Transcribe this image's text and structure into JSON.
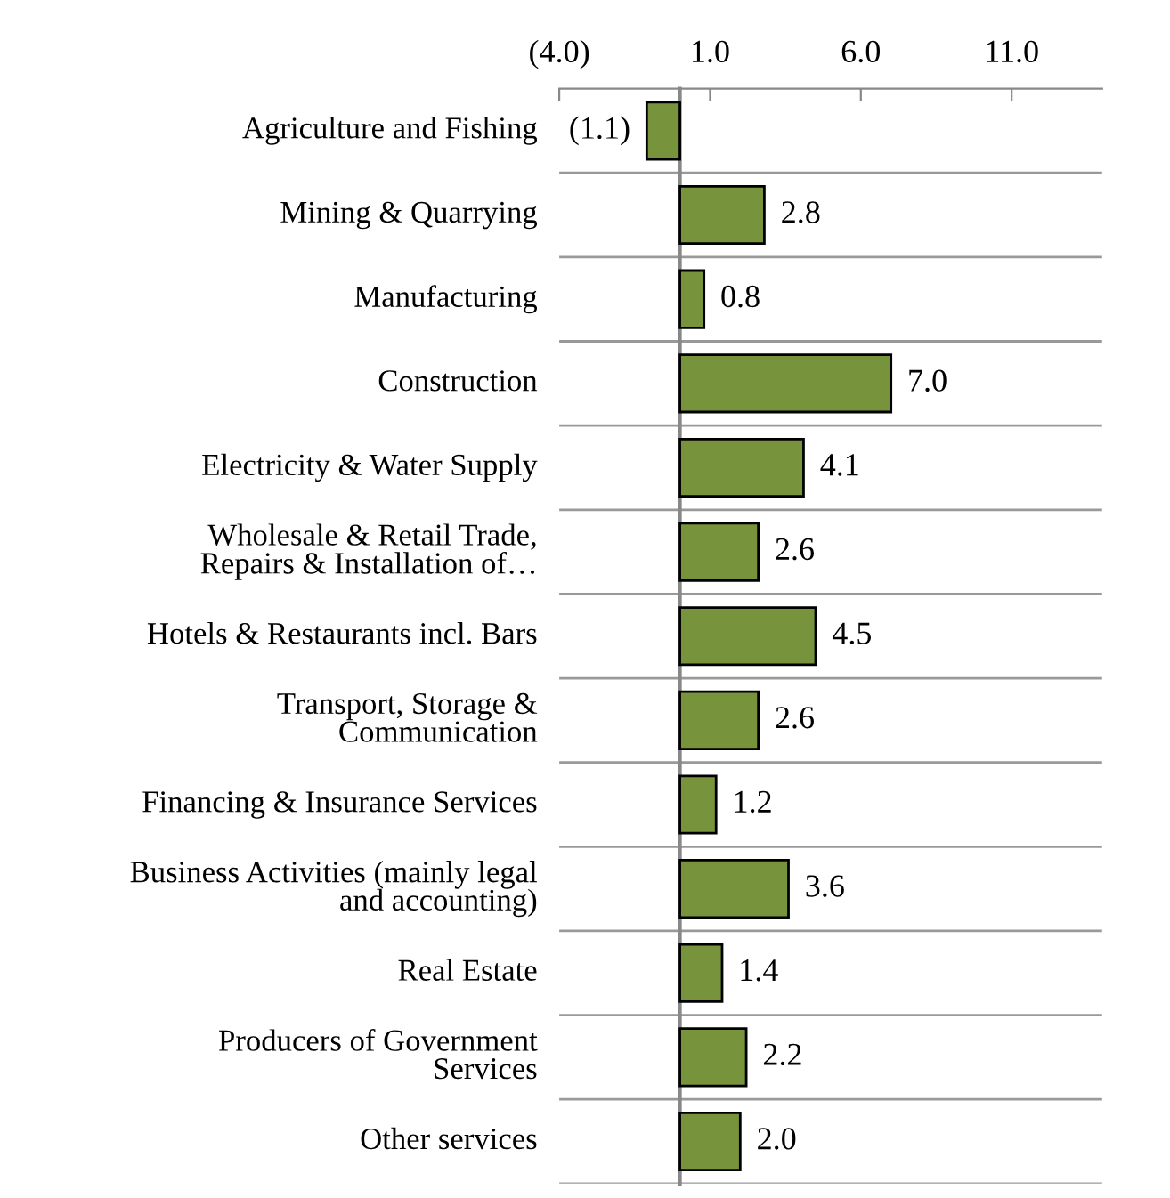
{
  "chart_data": {
    "type": "bar",
    "orientation": "horizontal",
    "categories": [
      "Agriculture and Fishing",
      "Mining & Quarrying",
      "Manufacturing",
      "Construction",
      "Electricity & Water Supply",
      "Wholesale & Retail Trade,\nRepairs & Installation of…",
      "Hotels & Restaurants incl. Bars",
      "Transport, Storage &\nCommunication",
      "Financing & Insurance Services",
      "Business Activities (mainly legal\nand accounting)",
      "Real Estate",
      "Producers of Government\nServices",
      "Other services"
    ],
    "values": [
      -1.1,
      2.8,
      0.8,
      7.0,
      4.1,
      2.6,
      4.5,
      2.6,
      1.2,
      3.6,
      1.4,
      2.2,
      2.0
    ],
    "value_labels": [
      "(1.1)",
      "2.8",
      "0.8",
      "7.0",
      "4.1",
      "2.6",
      "4.5",
      "2.6",
      "1.2",
      "3.6",
      "1.4",
      "2.2",
      "2.0"
    ],
    "color": "#77933c",
    "xlim": [
      -4,
      14
    ],
    "xticks": [
      {
        "value": -4,
        "label": "(4.0)"
      },
      {
        "value": 1,
        "label": "1.0"
      },
      {
        "value": 6,
        "label": "6.0"
      },
      {
        "value": 11,
        "label": "11.0"
      }
    ],
    "grid": "y"
  }
}
